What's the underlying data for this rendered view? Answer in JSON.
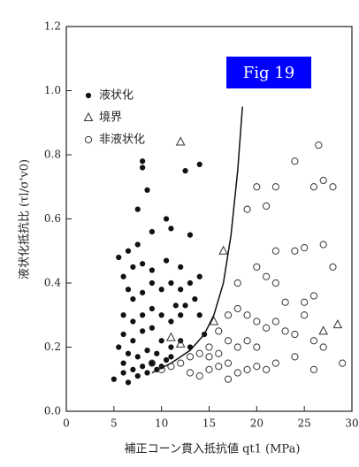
{
  "chart_data": {
    "type": "scatter",
    "title": "Fig 19",
    "xlabel": "補正コーン貫入抵抗値 qt1 (MPa)",
    "ylabel": "液状化抵抗比 (τl/σ'v0)",
    "xlim": [
      0,
      30
    ],
    "ylim": [
      0,
      1.2
    ],
    "xticks": [
      0,
      5,
      10,
      15,
      20,
      25,
      30
    ],
    "yticks": [
      {
        "value": 0,
        "label": "0.0"
      },
      0.2,
      0.4,
      0.6,
      0.8,
      {
        "value": 1,
        "label": "1.0"
      },
      1.2
    ],
    "legend": "upper-left",
    "series": [
      {
        "name": "液状化",
        "marker": "filled-circle",
        "color": "#111",
        "x": [
          5.5,
          6.5,
          7.5,
          8,
          8,
          8.5,
          9,
          7.5,
          10.5,
          11,
          12.5,
          14,
          13,
          12,
          10.5,
          6,
          7,
          8,
          9,
          6.5,
          7,
          8,
          9,
          10,
          11,
          12,
          13,
          14,
          11.5,
          12.5,
          13.5,
          6,
          7,
          8,
          9,
          10,
          11,
          12,
          14,
          6,
          7,
          8,
          9,
          10,
          11,
          12,
          13,
          5.5,
          6.5,
          7.5,
          8.5,
          9.5,
          10.5,
          6,
          7,
          8,
          9,
          10,
          5,
          6,
          6.5,
          7.5,
          8.5,
          9.5,
          11,
          14.5
        ],
        "values": [
          0.48,
          0.5,
          0.52,
          0.78,
          0.76,
          0.69,
          0.56,
          0.63,
          0.6,
          0.57,
          0.75,
          0.77,
          0.55,
          0.45,
          0.47,
          0.42,
          0.45,
          0.46,
          0.44,
          0.38,
          0.35,
          0.37,
          0.4,
          0.38,
          0.4,
          0.38,
          0.4,
          0.42,
          0.33,
          0.33,
          0.35,
          0.3,
          0.28,
          0.3,
          0.32,
          0.3,
          0.28,
          0.3,
          0.3,
          0.24,
          0.22,
          0.25,
          0.26,
          0.22,
          0.2,
          0.22,
          0.2,
          0.2,
          0.18,
          0.17,
          0.19,
          0.18,
          0.16,
          0.15,
          0.13,
          0.14,
          0.15,
          0.14,
          0.1,
          0.12,
          0.09,
          0.11,
          0.12,
          0.13,
          0.17,
          0.24
        ]
      },
      {
        "name": "境界",
        "marker": "triangle",
        "color": "#333",
        "x": [
          12,
          11,
          12,
          16.5,
          15.5,
          27,
          28.5
        ],
        "values": [
          0.84,
          0.23,
          0.21,
          0.5,
          0.28,
          0.25,
          0.27
        ]
      },
      {
        "name": "非液状化",
        "marker": "open-circle",
        "color": "#333",
        "x": [
          20,
          22,
          21,
          19,
          24,
          26,
          27,
          28,
          26.5,
          22,
          24,
          25,
          27,
          28,
          20,
          21,
          22,
          18,
          23,
          25,
          26,
          17,
          18,
          19,
          20,
          21,
          22,
          23,
          24,
          26,
          16,
          17,
          18,
          19,
          20,
          15,
          14,
          13,
          12,
          11,
          10,
          9,
          13,
          14,
          15,
          16,
          17,
          18,
          19,
          20,
          21,
          22,
          24,
          26,
          29,
          27,
          25,
          16,
          17,
          15
        ],
        "values": [
          0.7,
          0.7,
          0.64,
          0.63,
          0.78,
          0.7,
          0.72,
          0.7,
          0.83,
          0.5,
          0.5,
          0.51,
          0.52,
          0.45,
          0.45,
          0.42,
          0.4,
          0.4,
          0.34,
          0.34,
          0.36,
          0.3,
          0.32,
          0.3,
          0.28,
          0.26,
          0.28,
          0.25,
          0.24,
          0.22,
          0.25,
          0.22,
          0.2,
          0.22,
          0.2,
          0.2,
          0.18,
          0.17,
          0.15,
          0.14,
          0.13,
          0.15,
          0.12,
          0.11,
          0.13,
          0.14,
          0.15,
          0.12,
          0.13,
          0.14,
          0.13,
          0.15,
          0.17,
          0.13,
          0.15,
          0.2,
          0.3,
          0.18,
          0.1,
          0.17
        ]
      }
    ],
    "curve": {
      "x": [
        9,
        11,
        13,
        14.5,
        15.5,
        16.5,
        17.3,
        18,
        18.5
      ],
      "y": [
        0.12,
        0.15,
        0.19,
        0.24,
        0.3,
        0.4,
        0.55,
        0.75,
        0.95
      ]
    }
  }
}
